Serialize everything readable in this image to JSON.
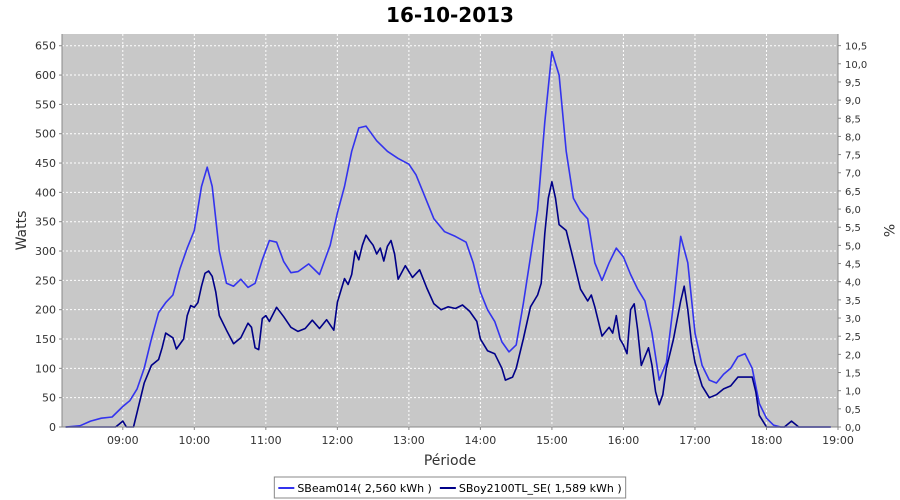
{
  "chart_data": {
    "type": "line",
    "title": "16-10-2013",
    "xlabel": "Période",
    "ylabel": "Watts",
    "y2label": "%",
    "xlim": [
      8.15,
      19.0
    ],
    "ylim": [
      0,
      670
    ],
    "y2lim": [
      0,
      10.82
    ],
    "x_ticks": [
      {
        "v": 9,
        "label": "09:00"
      },
      {
        "v": 10,
        "label": "10:00"
      },
      {
        "v": 11,
        "label": "11:00"
      },
      {
        "v": 12,
        "label": "12:00"
      },
      {
        "v": 13,
        "label": "13:00"
      },
      {
        "v": 14,
        "label": "14:00"
      },
      {
        "v": 15,
        "label": "15:00"
      },
      {
        "v": 16,
        "label": "16:00"
      },
      {
        "v": 17,
        "label": "17:00"
      },
      {
        "v": 18,
        "label": "18:00"
      },
      {
        "v": 19,
        "label": "19:00"
      }
    ],
    "y_ticks": [
      0,
      50,
      100,
      150,
      200,
      250,
      300,
      350,
      400,
      450,
      500,
      550,
      600,
      650
    ],
    "y2_ticks": [
      {
        "v": 0.0,
        "label": "0,0"
      },
      {
        "v": 0.5,
        "label": "0,5"
      },
      {
        "v": 1.0,
        "label": "1,0"
      },
      {
        "v": 1.5,
        "label": "1,5"
      },
      {
        "v": 2.0,
        "label": "2,0"
      },
      {
        "v": 2.5,
        "label": "2,5"
      },
      {
        "v": 3.0,
        "label": "3,0"
      },
      {
        "v": 3.5,
        "label": "3,5"
      },
      {
        "v": 4.0,
        "label": "4,0"
      },
      {
        "v": 4.5,
        "label": "4,5"
      },
      {
        "v": 5.0,
        "label": "5,0"
      },
      {
        "v": 5.5,
        "label": "5,5"
      },
      {
        "v": 6.0,
        "label": "6,0"
      },
      {
        "v": 6.5,
        "label": "6,5"
      },
      {
        "v": 7.0,
        "label": "7,0"
      },
      {
        "v": 7.5,
        "label": "7,5"
      },
      {
        "v": 8.0,
        "label": "8,0"
      },
      {
        "v": 8.5,
        "label": "8,5"
      },
      {
        "v": 9.0,
        "label": "9,0"
      },
      {
        "v": 9.5,
        "label": "9,5"
      },
      {
        "v": 10.0,
        "label": "10,0"
      },
      {
        "v": 10.5,
        "label": "10,5"
      }
    ],
    "grid": true,
    "legend_position": "bottom",
    "plot_background": "#c8c8c8",
    "series": [
      {
        "name": "SBeam014( 2,560 kWh )",
        "color": "#3333ee",
        "points": [
          [
            8.2,
            0
          ],
          [
            8.4,
            2
          ],
          [
            8.55,
            10
          ],
          [
            8.7,
            15
          ],
          [
            8.85,
            17
          ],
          [
            9.0,
            35
          ],
          [
            9.1,
            45
          ],
          [
            9.2,
            65
          ],
          [
            9.3,
            100
          ],
          [
            9.4,
            150
          ],
          [
            9.5,
            195
          ],
          [
            9.6,
            212
          ],
          [
            9.7,
            225
          ],
          [
            9.8,
            270
          ],
          [
            9.9,
            305
          ],
          [
            10.0,
            335
          ],
          [
            10.1,
            410
          ],
          [
            10.18,
            443
          ],
          [
            10.25,
            410
          ],
          [
            10.35,
            300
          ],
          [
            10.45,
            245
          ],
          [
            10.55,
            240
          ],
          [
            10.65,
            252
          ],
          [
            10.75,
            238
          ],
          [
            10.85,
            245
          ],
          [
            10.95,
            285
          ],
          [
            11.05,
            318
          ],
          [
            11.15,
            315
          ],
          [
            11.25,
            282
          ],
          [
            11.35,
            263
          ],
          [
            11.45,
            265
          ],
          [
            11.6,
            278
          ],
          [
            11.75,
            260
          ],
          [
            11.9,
            310
          ],
          [
            12.0,
            365
          ],
          [
            12.1,
            410
          ],
          [
            12.2,
            470
          ],
          [
            12.3,
            510
          ],
          [
            12.4,
            513
          ],
          [
            12.55,
            488
          ],
          [
            12.7,
            470
          ],
          [
            12.85,
            458
          ],
          [
            13.0,
            448
          ],
          [
            13.1,
            430
          ],
          [
            13.2,
            400
          ],
          [
            13.35,
            355
          ],
          [
            13.5,
            333
          ],
          [
            13.65,
            325
          ],
          [
            13.8,
            315
          ],
          [
            13.9,
            280
          ],
          [
            14.0,
            230
          ],
          [
            14.1,
            200
          ],
          [
            14.2,
            180
          ],
          [
            14.3,
            145
          ],
          [
            14.4,
            128
          ],
          [
            14.5,
            140
          ],
          [
            14.6,
            210
          ],
          [
            14.7,
            290
          ],
          [
            14.8,
            370
          ],
          [
            14.9,
            520
          ],
          [
            15.0,
            640
          ],
          [
            15.1,
            600
          ],
          [
            15.2,
            470
          ],
          [
            15.3,
            390
          ],
          [
            15.4,
            368
          ],
          [
            15.5,
            355
          ],
          [
            15.6,
            280
          ],
          [
            15.7,
            250
          ],
          [
            15.8,
            280
          ],
          [
            15.9,
            305
          ],
          [
            16.0,
            290
          ],
          [
            16.1,
            260
          ],
          [
            16.2,
            235
          ],
          [
            16.3,
            215
          ],
          [
            16.4,
            160
          ],
          [
            16.5,
            80
          ],
          [
            16.6,
            110
          ],
          [
            16.7,
            210
          ],
          [
            16.8,
            325
          ],
          [
            16.9,
            280
          ],
          [
            17.0,
            160
          ],
          [
            17.1,
            105
          ],
          [
            17.2,
            80
          ],
          [
            17.3,
            75
          ],
          [
            17.4,
            90
          ],
          [
            17.5,
            100
          ],
          [
            17.6,
            120
          ],
          [
            17.7,
            125
          ],
          [
            17.8,
            100
          ],
          [
            17.9,
            40
          ],
          [
            18.0,
            15
          ],
          [
            18.1,
            3
          ],
          [
            18.2,
            0
          ],
          [
            18.4,
            0
          ],
          [
            18.9,
            0
          ]
        ]
      },
      {
        "name": "SBoy2100TL_SE( 1,589 kWh )",
        "color": "#000088",
        "points": [
          [
            8.2,
            0
          ],
          [
            8.9,
            0
          ],
          [
            8.95,
            5
          ],
          [
            9.0,
            10
          ],
          [
            9.05,
            0
          ],
          [
            9.15,
            0
          ],
          [
            9.2,
            25
          ],
          [
            9.3,
            75
          ],
          [
            9.4,
            105
          ],
          [
            9.5,
            115
          ],
          [
            9.55,
            135
          ],
          [
            9.6,
            160
          ],
          [
            9.7,
            152
          ],
          [
            9.75,
            133
          ],
          [
            9.85,
            150
          ],
          [
            9.9,
            190
          ],
          [
            9.95,
            207
          ],
          [
            10.0,
            204
          ],
          [
            10.05,
            212
          ],
          [
            10.1,
            240
          ],
          [
            10.15,
            262
          ],
          [
            10.2,
            266
          ],
          [
            10.25,
            257
          ],
          [
            10.3,
            230
          ],
          [
            10.35,
            190
          ],
          [
            10.45,
            165
          ],
          [
            10.55,
            142
          ],
          [
            10.65,
            152
          ],
          [
            10.75,
            177
          ],
          [
            10.8,
            170
          ],
          [
            10.85,
            135
          ],
          [
            10.9,
            132
          ],
          [
            10.95,
            185
          ],
          [
            11.0,
            190
          ],
          [
            11.05,
            180
          ],
          [
            11.15,
            204
          ],
          [
            11.25,
            188
          ],
          [
            11.35,
            170
          ],
          [
            11.45,
            163
          ],
          [
            11.55,
            168
          ],
          [
            11.65,
            182
          ],
          [
            11.75,
            168
          ],
          [
            11.85,
            183
          ],
          [
            11.95,
            165
          ],
          [
            12.0,
            213
          ],
          [
            12.1,
            253
          ],
          [
            12.15,
            243
          ],
          [
            12.2,
            260
          ],
          [
            12.25,
            300
          ],
          [
            12.3,
            285
          ],
          [
            12.35,
            310
          ],
          [
            12.4,
            327
          ],
          [
            12.45,
            318
          ],
          [
            12.5,
            310
          ],
          [
            12.55,
            295
          ],
          [
            12.6,
            305
          ],
          [
            12.65,
            283
          ],
          [
            12.7,
            308
          ],
          [
            12.75,
            318
          ],
          [
            12.8,
            295
          ],
          [
            12.85,
            252
          ],
          [
            12.95,
            275
          ],
          [
            13.05,
            255
          ],
          [
            13.15,
            268
          ],
          [
            13.25,
            237
          ],
          [
            13.35,
            210
          ],
          [
            13.45,
            200
          ],
          [
            13.55,
            205
          ],
          [
            13.65,
            202
          ],
          [
            13.75,
            208
          ],
          [
            13.85,
            197
          ],
          [
            13.95,
            180
          ],
          [
            14.0,
            150
          ],
          [
            14.1,
            130
          ],
          [
            14.2,
            125
          ],
          [
            14.3,
            100
          ],
          [
            14.35,
            80
          ],
          [
            14.45,
            85
          ],
          [
            14.5,
            100
          ],
          [
            14.6,
            150
          ],
          [
            14.7,
            205
          ],
          [
            14.8,
            225
          ],
          [
            14.85,
            245
          ],
          [
            14.9,
            330
          ],
          [
            14.95,
            390
          ],
          [
            15.0,
            418
          ],
          [
            15.05,
            390
          ],
          [
            15.1,
            345
          ],
          [
            15.2,
            335
          ],
          [
            15.3,
            285
          ],
          [
            15.4,
            235
          ],
          [
            15.5,
            215
          ],
          [
            15.55,
            225
          ],
          [
            15.6,
            205
          ],
          [
            15.65,
            180
          ],
          [
            15.7,
            155
          ],
          [
            15.8,
            170
          ],
          [
            15.85,
            160
          ],
          [
            15.9,
            190
          ],
          [
            15.95,
            150
          ],
          [
            16.0,
            140
          ],
          [
            16.05,
            125
          ],
          [
            16.1,
            200
          ],
          [
            16.15,
            210
          ],
          [
            16.2,
            165
          ],
          [
            16.25,
            105
          ],
          [
            16.3,
            120
          ],
          [
            16.35,
            135
          ],
          [
            16.4,
            105
          ],
          [
            16.45,
            60
          ],
          [
            16.5,
            38
          ],
          [
            16.55,
            55
          ],
          [
            16.6,
            100
          ],
          [
            16.7,
            150
          ],
          [
            16.8,
            215
          ],
          [
            16.85,
            240
          ],
          [
            16.9,
            200
          ],
          [
            16.95,
            145
          ],
          [
            17.0,
            110
          ],
          [
            17.1,
            70
          ],
          [
            17.2,
            50
          ],
          [
            17.3,
            55
          ],
          [
            17.4,
            65
          ],
          [
            17.5,
            70
          ],
          [
            17.6,
            85
          ],
          [
            17.7,
            85
          ],
          [
            17.8,
            85
          ],
          [
            17.85,
            60
          ],
          [
            17.9,
            20
          ],
          [
            18.0,
            0
          ],
          [
            18.25,
            0
          ],
          [
            18.35,
            10
          ],
          [
            18.45,
            0
          ],
          [
            18.9,
            0
          ]
        ]
      }
    ]
  }
}
